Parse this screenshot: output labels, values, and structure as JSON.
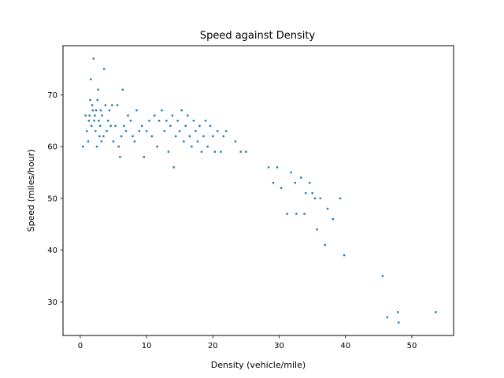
{
  "chart_data": {
    "type": "scatter",
    "title": "Speed against Density",
    "xlabel": "Density (vehicle/mile)",
    "ylabel": "Speed (miles/hour)",
    "xlim": [
      -2.6,
      56.3
    ],
    "ylim": [
      23.5,
      79.5
    ],
    "xticks": [
      0,
      10,
      20,
      30,
      40,
      50
    ],
    "yticks": [
      30,
      40,
      50,
      60,
      70
    ],
    "grid": false,
    "marker_color": "#1f77b4",
    "series": [
      {
        "points": [
          [
            0.4,
            60
          ],
          [
            0.8,
            66
          ],
          [
            1.0,
            63
          ],
          [
            1.2,
            61
          ],
          [
            1.3,
            65
          ],
          [
            1.4,
            66
          ],
          [
            1.5,
            69
          ],
          [
            1.6,
            73
          ],
          [
            1.7,
            64
          ],
          [
            1.8,
            68
          ],
          [
            1.9,
            67
          ],
          [
            2.0,
            77
          ],
          [
            2.1,
            65
          ],
          [
            2.2,
            66
          ],
          [
            2.3,
            63
          ],
          [
            2.4,
            67
          ],
          [
            2.5,
            60
          ],
          [
            2.6,
            69
          ],
          [
            2.7,
            71
          ],
          [
            2.8,
            65
          ],
          [
            2.9,
            62
          ],
          [
            3.0,
            64
          ],
          [
            3.1,
            67
          ],
          [
            3.2,
            61
          ],
          [
            3.3,
            66
          ],
          [
            3.5,
            62
          ],
          [
            3.6,
            75
          ],
          [
            3.8,
            68
          ],
          [
            4.0,
            63
          ],
          [
            4.2,
            65
          ],
          [
            4.4,
            67
          ],
          [
            4.6,
            64
          ],
          [
            4.8,
            68
          ],
          [
            5.0,
            61
          ],
          [
            5.3,
            64
          ],
          [
            5.6,
            68
          ],
          [
            5.8,
            60
          ],
          [
            6.0,
            58
          ],
          [
            6.2,
            62
          ],
          [
            6.4,
            71
          ],
          [
            6.6,
            64
          ],
          [
            6.9,
            63
          ],
          [
            7.2,
            66
          ],
          [
            7.6,
            65
          ],
          [
            7.9,
            62
          ],
          [
            8.2,
            61
          ],
          [
            8.5,
            67
          ],
          [
            8.9,
            63
          ],
          [
            9.3,
            64
          ],
          [
            9.6,
            58
          ],
          [
            10.0,
            63
          ],
          [
            10.4,
            65
          ],
          [
            10.8,
            62
          ],
          [
            11.2,
            66
          ],
          [
            11.6,
            60
          ],
          [
            11.9,
            65
          ],
          [
            12.3,
            67
          ],
          [
            12.7,
            63
          ],
          [
            13.0,
            65
          ],
          [
            13.3,
            59
          ],
          [
            13.6,
            64
          ],
          [
            13.9,
            66
          ],
          [
            14.1,
            56
          ],
          [
            14.4,
            62
          ],
          [
            14.7,
            65
          ],
          [
            15.0,
            63
          ],
          [
            15.3,
            67
          ],
          [
            15.6,
            61
          ],
          [
            15.9,
            64
          ],
          [
            16.2,
            66
          ],
          [
            16.5,
            62
          ],
          [
            16.8,
            60
          ],
          [
            17.1,
            65
          ],
          [
            17.4,
            63
          ],
          [
            17.7,
            61
          ],
          [
            18.0,
            64
          ],
          [
            18.3,
            59
          ],
          [
            18.6,
            62
          ],
          [
            18.9,
            65
          ],
          [
            19.2,
            60
          ],
          [
            19.6,
            64
          ],
          [
            20.0,
            62
          ],
          [
            20.3,
            59
          ],
          [
            20.7,
            63
          ],
          [
            21.2,
            59
          ],
          [
            21.6,
            62
          ],
          [
            22.0,
            63
          ],
          [
            23.4,
            61
          ],
          [
            24.2,
            59
          ],
          [
            25.0,
            59
          ],
          [
            28.4,
            56
          ],
          [
            29.1,
            53
          ],
          [
            29.7,
            56
          ],
          [
            30.3,
            52
          ],
          [
            31.2,
            47
          ],
          [
            31.8,
            55
          ],
          [
            32.4,
            53
          ],
          [
            32.6,
            47
          ],
          [
            33.3,
            54
          ],
          [
            33.8,
            47
          ],
          [
            34.0,
            51
          ],
          [
            34.6,
            53
          ],
          [
            35.0,
            51
          ],
          [
            35.4,
            50
          ],
          [
            35.7,
            44
          ],
          [
            36.2,
            50
          ],
          [
            36.9,
            41
          ],
          [
            37.3,
            48
          ],
          [
            38.1,
            46
          ],
          [
            39.2,
            50
          ],
          [
            39.8,
            39
          ],
          [
            45.6,
            35
          ],
          [
            46.3,
            27
          ],
          [
            47.9,
            28
          ],
          [
            48.0,
            26
          ],
          [
            53.6,
            28
          ]
        ]
      }
    ]
  }
}
